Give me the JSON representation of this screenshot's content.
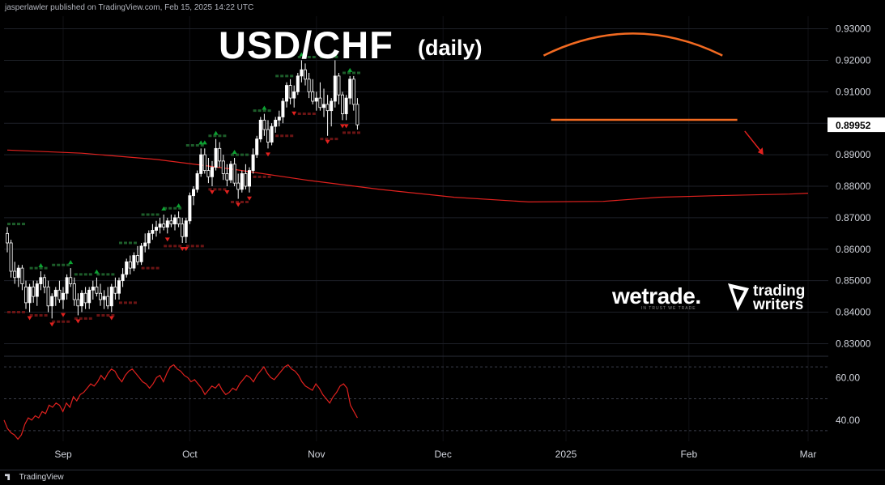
{
  "header": {
    "published_text": "jasperlawler published on TradingView.com, Feb 15, 2025 14:22 UTC"
  },
  "title": {
    "main": "USD/CHF",
    "sub": "(daily)"
  },
  "brands": {
    "wetrade": "wetrade.",
    "wetrade_tagline": "IN TRUST WE TRADE",
    "tradingwriters_line1": "trading",
    "tradingwriters_line2": "writers"
  },
  "footer": {
    "logo_text": "TradingView"
  },
  "colors": {
    "background": "#000000",
    "candle": "#ffffff",
    "ma_line": "#e0211e",
    "rsi_line": "#e0211e",
    "arc_annotation": "#f26a21",
    "support_line": "#f26a21",
    "arrow_annotation": "#e0211e",
    "up_marker": "#0ca332",
    "down_marker": "#e0211e",
    "green_level": "#1d5d2a",
    "red_level": "#6b1414",
    "grid": "#1e2128"
  },
  "chart_data": [
    {
      "type": "candlestick",
      "title": "USD/CHF (daily)",
      "ylim": [
        0.826,
        0.934
      ],
      "y_ticks": [
        "0.93000",
        "0.92000",
        "0.91000",
        "0.90000",
        "0.89000",
        "0.88000",
        "0.87000",
        "0.86000",
        "0.85000",
        "0.84000",
        "0.83000"
      ],
      "y_tick_values": [
        0.93,
        0.92,
        0.91,
        0.9,
        0.89,
        0.88,
        0.87,
        0.86,
        0.85,
        0.84,
        0.83
      ],
      "x_ticks": [
        "Sep",
        "Oct",
        "Nov",
        "Dec",
        "2025",
        "Feb",
        "Mar"
      ],
      "x_tick_index": [
        15,
        49,
        83,
        117,
        150,
        183,
        215
      ],
      "last_price_label": "0.89952",
      "last_price": 0.89952,
      "candles": [
        [
          0.865,
          0.867,
          0.859,
          0.862
        ],
        [
          0.862,
          0.863,
          0.851,
          0.853
        ],
        [
          0.853,
          0.856,
          0.849,
          0.851
        ],
        [
          0.851,
          0.855,
          0.848,
          0.854
        ],
        [
          0.854,
          0.855,
          0.847,
          0.849
        ],
        [
          0.848,
          0.85,
          0.841,
          0.843
        ],
        [
          0.843,
          0.849,
          0.84,
          0.848
        ],
        [
          0.848,
          0.85,
          0.843,
          0.845
        ],
        [
          0.845,
          0.85,
          0.842,
          0.849
        ],
        [
          0.849,
          0.853,
          0.847,
          0.851
        ],
        [
          0.851,
          0.852,
          0.846,
          0.848
        ],
        [
          0.848,
          0.85,
          0.84,
          0.842
        ],
        [
          0.842,
          0.846,
          0.838,
          0.845
        ],
        [
          0.845,
          0.848,
          0.842,
          0.847
        ],
        [
          0.847,
          0.85,
          0.843,
          0.844
        ],
        [
          0.844,
          0.848,
          0.841,
          0.846
        ],
        [
          0.846,
          0.852,
          0.844,
          0.851
        ],
        [
          0.851,
          0.854,
          0.848,
          0.849
        ],
        [
          0.849,
          0.851,
          0.842,
          0.844
        ],
        [
          0.844,
          0.846,
          0.839,
          0.842
        ],
        [
          0.842,
          0.847,
          0.84,
          0.846
        ],
        [
          0.846,
          0.848,
          0.841,
          0.843
        ],
        [
          0.843,
          0.848,
          0.841,
          0.847
        ],
        [
          0.847,
          0.85,
          0.844,
          0.848
        ],
        [
          0.848,
          0.851,
          0.845,
          0.846
        ],
        [
          0.846,
          0.849,
          0.842,
          0.844
        ],
        [
          0.844,
          0.847,
          0.841,
          0.845
        ],
        [
          0.845,
          0.848,
          0.841,
          0.842
        ],
        [
          0.842,
          0.849,
          0.84,
          0.848
        ],
        [
          0.848,
          0.851,
          0.844,
          0.846
        ],
        [
          0.846,
          0.851,
          0.844,
          0.85
        ],
        [
          0.85,
          0.854,
          0.848,
          0.852
        ],
        [
          0.852,
          0.857,
          0.851,
          0.856
        ],
        [
          0.856,
          0.858,
          0.852,
          0.854
        ],
        [
          0.854,
          0.859,
          0.853,
          0.858
        ],
        [
          0.858,
          0.861,
          0.855,
          0.856
        ],
        [
          0.856,
          0.862,
          0.855,
          0.861
        ],
        [
          0.861,
          0.865,
          0.859,
          0.862
        ],
        [
          0.862,
          0.866,
          0.86,
          0.865
        ],
        [
          0.865,
          0.868,
          0.863,
          0.866
        ],
        [
          0.866,
          0.869,
          0.864,
          0.867
        ],
        [
          0.867,
          0.87,
          0.865,
          0.868
        ],
        [
          0.868,
          0.871,
          0.866,
          0.867
        ],
        [
          0.867,
          0.87,
          0.865,
          0.869
        ],
        [
          0.869,
          0.871,
          0.867,
          0.868
        ],
        [
          0.868,
          0.871,
          0.866,
          0.87
        ],
        [
          0.87,
          0.872,
          0.867,
          0.868
        ],
        [
          0.868,
          0.87,
          0.862,
          0.864
        ],
        [
          0.864,
          0.87,
          0.862,
          0.869
        ],
        [
          0.869,
          0.878,
          0.868,
          0.877
        ],
        [
          0.877,
          0.88,
          0.874,
          0.879
        ],
        [
          0.879,
          0.885,
          0.878,
          0.884
        ],
        [
          0.884,
          0.892,
          0.883,
          0.89
        ],
        [
          0.89,
          0.892,
          0.884,
          0.885
        ],
        [
          0.885,
          0.889,
          0.881,
          0.883
        ],
        [
          0.883,
          0.888,
          0.88,
          0.886
        ],
        [
          0.886,
          0.895,
          0.885,
          0.892
        ],
        [
          0.892,
          0.894,
          0.886,
          0.888
        ],
        [
          0.888,
          0.89,
          0.882,
          0.884
        ],
        [
          0.884,
          0.887,
          0.88,
          0.882
        ],
        [
          0.882,
          0.888,
          0.881,
          0.887
        ],
        [
          0.887,
          0.889,
          0.88,
          0.881
        ],
        [
          0.881,
          0.884,
          0.876,
          0.879
        ],
        [
          0.879,
          0.885,
          0.878,
          0.884
        ],
        [
          0.884,
          0.887,
          0.879,
          0.88
        ],
        [
          0.88,
          0.886,
          0.878,
          0.885
        ],
        [
          0.885,
          0.892,
          0.884,
          0.89
        ],
        [
          0.89,
          0.896,
          0.889,
          0.895
        ],
        [
          0.895,
          0.902,
          0.894,
          0.901
        ],
        [
          0.901,
          0.903,
          0.896,
          0.898
        ],
        [
          0.898,
          0.901,
          0.892,
          0.894
        ],
        [
          0.894,
          0.9,
          0.893,
          0.899
        ],
        [
          0.899,
          0.902,
          0.897,
          0.901
        ],
        [
          0.901,
          0.904,
          0.899,
          0.902
        ],
        [
          0.902,
          0.908,
          0.9,
          0.907
        ],
        [
          0.907,
          0.913,
          0.905,
          0.912
        ],
        [
          0.912,
          0.914,
          0.906,
          0.908
        ],
        [
          0.908,
          0.912,
          0.905,
          0.91
        ],
        [
          0.91,
          0.916,
          0.909,
          0.915
        ],
        [
          0.915,
          0.92,
          0.913,
          0.917
        ],
        [
          0.917,
          0.919,
          0.912,
          0.914
        ],
        [
          0.914,
          0.916,
          0.908,
          0.91
        ],
        [
          0.91,
          0.914,
          0.906,
          0.907
        ],
        [
          0.907,
          0.91,
          0.904,
          0.908
        ],
        [
          0.908,
          0.913,
          0.904,
          0.905
        ],
        [
          0.905,
          0.911,
          0.902,
          0.906
        ],
        [
          0.906,
          0.909,
          0.896,
          0.904
        ],
        [
          0.904,
          0.908,
          0.899,
          0.907
        ],
        [
          0.907,
          0.92,
          0.905,
          0.915
        ],
        [
          0.915,
          0.916,
          0.906,
          0.909
        ],
        [
          0.909,
          0.91,
          0.901,
          0.903
        ],
        [
          0.903,
          0.909,
          0.901,
          0.908
        ],
        [
          0.908,
          0.915,
          0.906,
          0.914
        ],
        [
          0.914,
          0.915,
          0.904,
          0.906
        ],
        [
          0.906,
          0.908,
          0.898,
          0.8995
        ]
      ],
      "moving_average": [
        [
          0,
          0.8915
        ],
        [
          20,
          0.8905
        ],
        [
          40,
          0.8885
        ],
        [
          60,
          0.8855
        ],
        [
          80,
          0.882
        ],
        [
          100,
          0.879
        ],
        [
          120,
          0.8765
        ],
        [
          140,
          0.875
        ],
        [
          160,
          0.8752
        ],
        [
          175,
          0.8765
        ],
        [
          190,
          0.877
        ],
        [
          210,
          0.8775
        ],
        [
          215,
          0.8778
        ]
      ]
    },
    {
      "type": "line",
      "title": "",
      "y_ticks": [
        "60.00",
        "40.00"
      ],
      "y_tick_values": [
        60,
        40
      ],
      "ylim": [
        30,
        70
      ],
      "series": [
        {
          "values": [
            40,
            36,
            34,
            33,
            31,
            33,
            38,
            41,
            40,
            42,
            41,
            44,
            43,
            47,
            46,
            48,
            47,
            44,
            48,
            46,
            51,
            49,
            52,
            53,
            55,
            57,
            56,
            58,
            61,
            59,
            62,
            64,
            63,
            60,
            58,
            61,
            63,
            64,
            62,
            60,
            58,
            57,
            55,
            57,
            60,
            61,
            58,
            62,
            65,
            66,
            64,
            63,
            61,
            60,
            58,
            59,
            57,
            55,
            52,
            54,
            56,
            55,
            57,
            54,
            52,
            53,
            55,
            54,
            57,
            59,
            61,
            60,
            58,
            61,
            63,
            65,
            62,
            60,
            59,
            61,
            63,
            65,
            66,
            64,
            63,
            61,
            58,
            56,
            55,
            54,
            57,
            55,
            52,
            50,
            48,
            51,
            53,
            56,
            57,
            55,
            47,
            44,
            41
          ]
        }
      ]
    }
  ]
}
